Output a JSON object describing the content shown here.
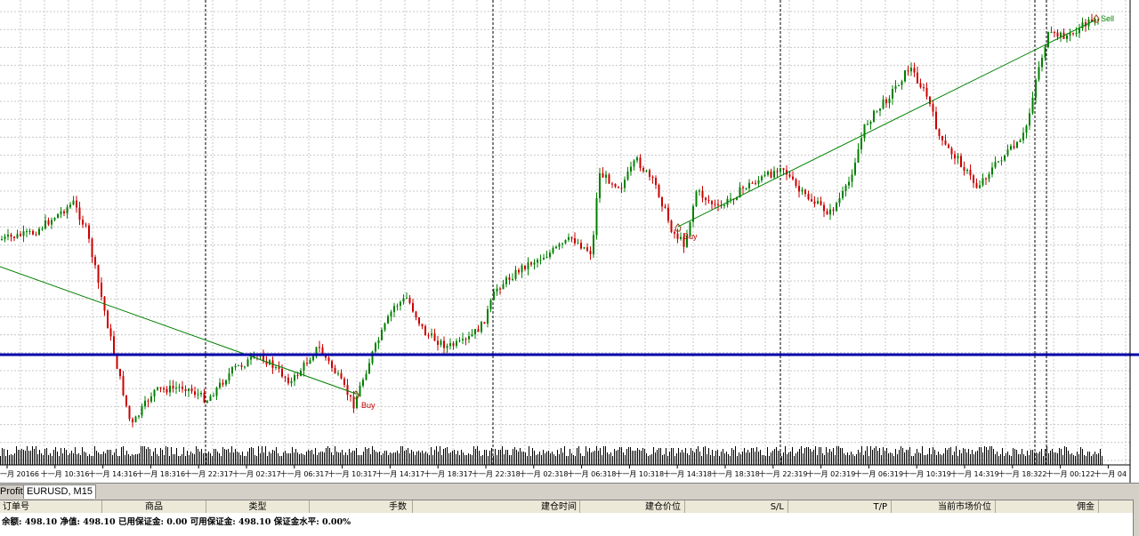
{
  "chart_data": {
    "type": "candlestick",
    "symbol": "EURUSD",
    "timeframe": "M15",
    "x_tick_labels": [
      "十一月 2016",
      "十一月 10:31",
      "十一月 14:31",
      "十一月 18:31",
      "十一月 22:31",
      "十一月 02:31",
      "十一月 06:31",
      "十一月 10:31",
      "十一月 14:31",
      "十一月 18:31",
      "十一月 22:31",
      "十一月 02:31",
      "十一月 06:31",
      "十一月 10:31",
      "十一月 14:31",
      "十一月 18:31",
      "十一月 22:31",
      "十一月 02:31",
      "十一月 06:31",
      "十一月 10:31",
      "十一月 14:31",
      "十一月 18:32",
      "十一月 00:12",
      "十一月 04"
    ],
    "x_tick_days": [
      "6",
      "6",
      "6",
      "6",
      "7",
      "7",
      "7",
      "7",
      "7",
      "7",
      "8",
      "8",
      "8",
      "8",
      "8",
      "8",
      "9",
      "9",
      "9",
      "9",
      "9",
      "2",
      "2",
      ""
    ],
    "trade_labels": [
      {
        "text": "Buy",
        "color": "#c00000"
      },
      {
        "text": "Buy",
        "color": "#c00000"
      },
      {
        "text": "Sell",
        "color": "#008000"
      }
    ],
    "horizontal_line_color": "#0000aa",
    "up_color": "#008000",
    "down_color": "#cc0000",
    "grid": true
  },
  "tabs": {
    "profit": "Profit",
    "symbol_tab": "EURUSD, M15"
  },
  "terminal": {
    "columns": {
      "order": "订单号",
      "symbol": "商品",
      "type": "类型",
      "volume": "手数",
      "open_time": "建仓时间",
      "open_price": "建仓价位",
      "sl": "S/L",
      "tp": "T/P",
      "market_price": "当前市场价位",
      "commission": "佣金"
    },
    "status": "余额: 498.10 净值: 498.10 已用保证金: 0.00 可用保证金: 498.10 保证金水平: 0.00%"
  }
}
